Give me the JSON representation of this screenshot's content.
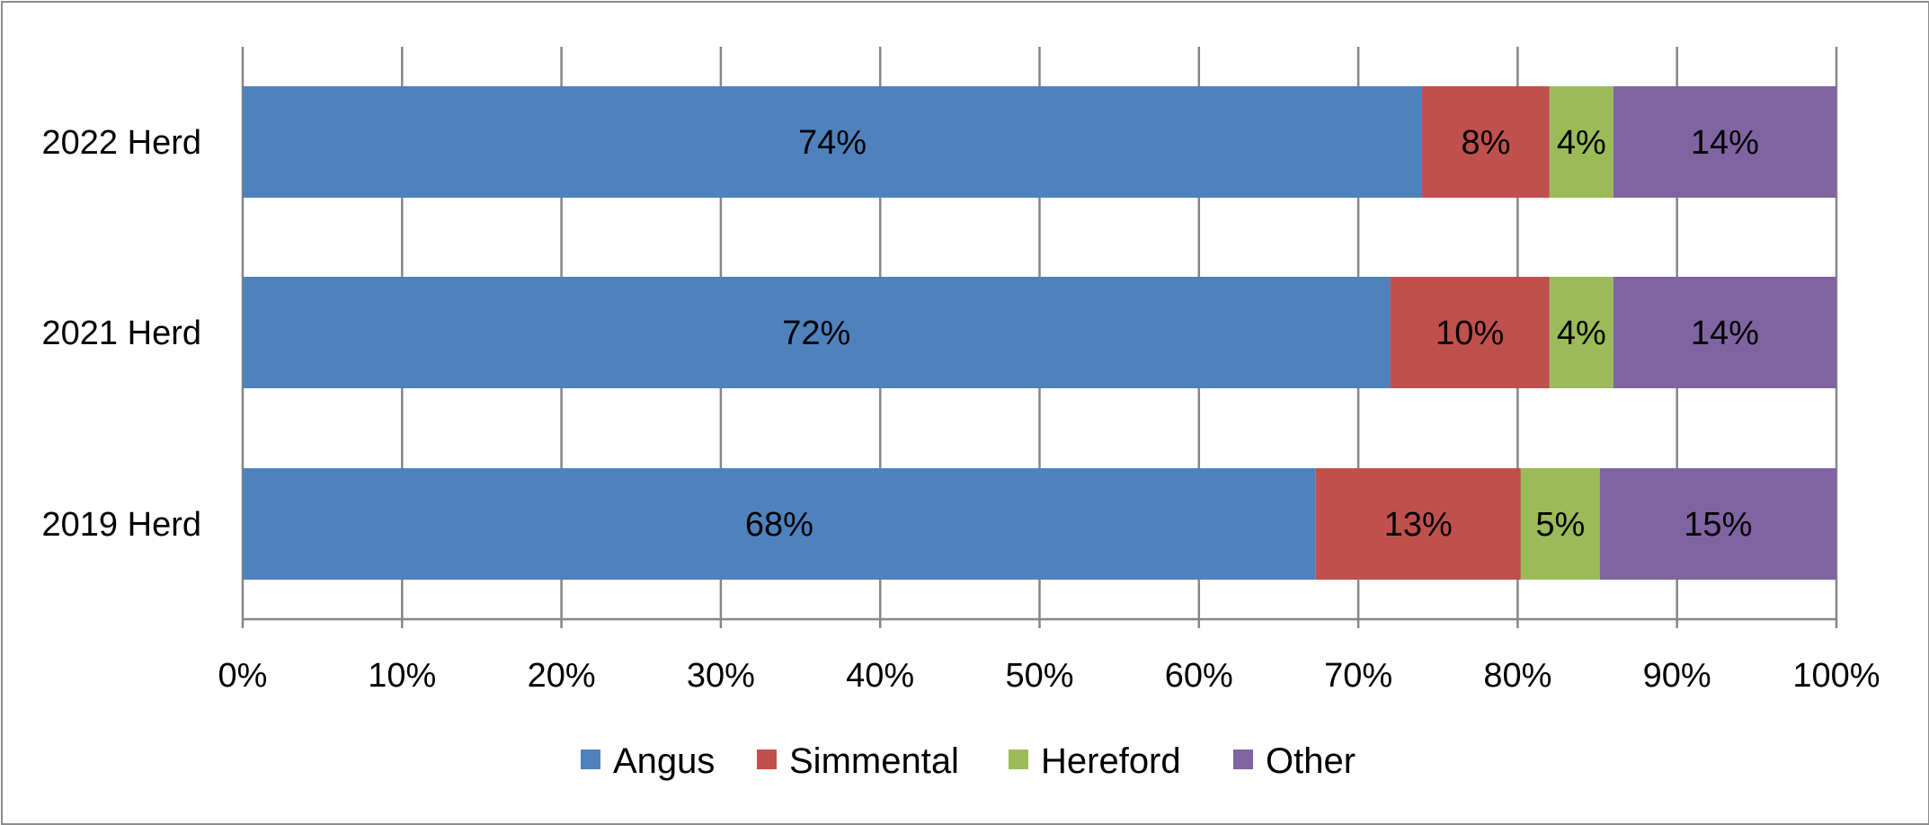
{
  "chart_data": {
    "type": "bar",
    "orientation": "horizontal",
    "stacked": "percent",
    "categories": [
      "2022 Herd",
      "2021 Herd",
      "2019 Herd"
    ],
    "series": [
      {
        "name": "Angus",
        "color": "#4f81bd",
        "values": [
          74,
          72,
          68
        ],
        "labels": [
          "74%",
          "72%",
          "68%"
        ]
      },
      {
        "name": "Simmental",
        "color": "#c0504d",
        "values": [
          8,
          10,
          13
        ],
        "labels": [
          "8%",
          "10%",
          "13%"
        ]
      },
      {
        "name": "Hereford",
        "color": "#9bbb59",
        "values": [
          4,
          4,
          5
        ],
        "labels": [
          "4%",
          "4%",
          "5%"
        ]
      },
      {
        "name": "Other",
        "color": "#8064a2",
        "values": [
          14,
          14,
          15
        ],
        "labels": [
          "14%",
          "14%",
          "15%"
        ]
      }
    ],
    "x_ticks": [
      "0%",
      "10%",
      "20%",
      "30%",
      "40%",
      "50%",
      "60%",
      "70%",
      "80%",
      "90%",
      "100%"
    ],
    "xlim": [
      0,
      100
    ],
    "grid": "vertical",
    "legend_position": "bottom",
    "gridline_color": "#868686"
  }
}
